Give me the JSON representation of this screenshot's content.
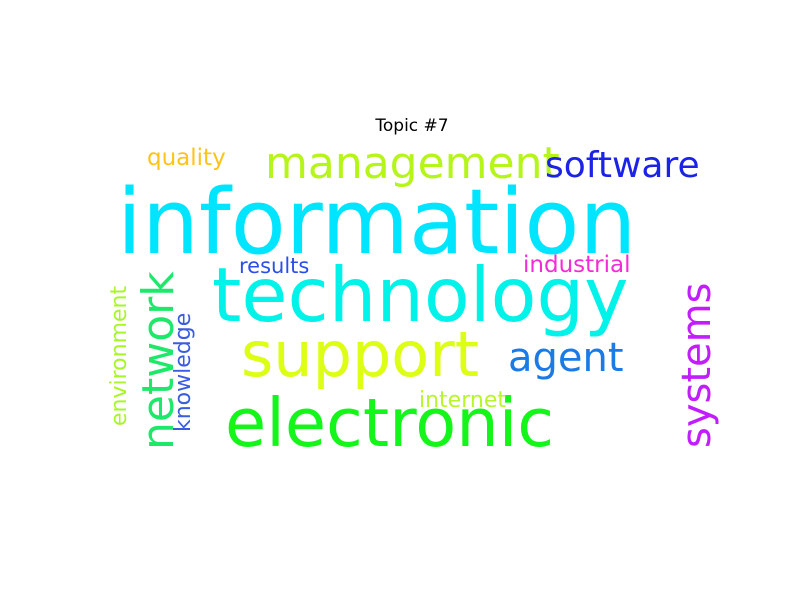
{
  "title": "Topic #7",
  "words": {
    "information": {
      "text": "information",
      "color": "#00e5ff"
    },
    "technology": {
      "text": "technology",
      "color": "#00f2e8"
    },
    "electronic": {
      "text": "electronic",
      "color": "#14f51a"
    },
    "support": {
      "text": "support",
      "color": "#dcff14"
    },
    "management": {
      "text": "management",
      "color": "#b5f51a"
    },
    "network": {
      "text": "network",
      "color": "#1ee86a"
    },
    "systems": {
      "text": "systems",
      "color": "#c21dff"
    },
    "software": {
      "text": "software",
      "color": "#1a23e6"
    },
    "agent": {
      "text": "agent",
      "color": "#1a7be6"
    },
    "quality": {
      "text": "quality",
      "color": "#ffc31a"
    },
    "industrial": {
      "text": "industrial",
      "color": "#f52ad8"
    },
    "results": {
      "text": "results",
      "color": "#2a4ee6"
    },
    "knowledge": {
      "text": "knowledge",
      "color": "#3a5ce0"
    },
    "environment": {
      "text": "environment",
      "color": "#a8f52a"
    },
    "internet": {
      "text": "internet",
      "color": "#b8f52a"
    }
  }
}
